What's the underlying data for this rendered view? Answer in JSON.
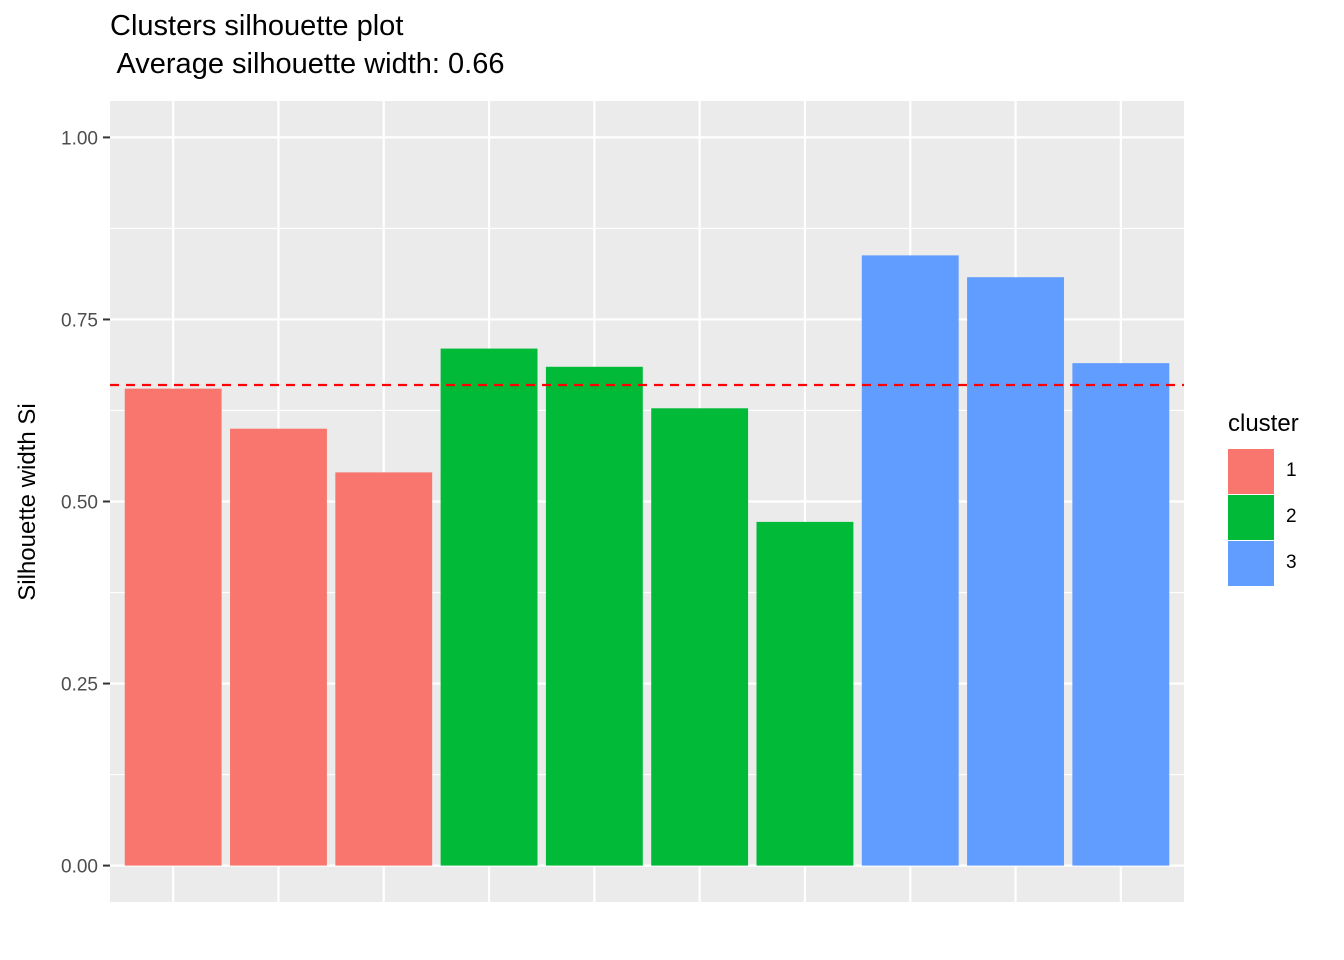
{
  "title": "Clusters silhouette plot",
  "subtitle": " Average silhouette width: 0.66",
  "chart_data": {
    "type": "bar",
    "title": "Clusters silhouette plot",
    "subtitle": " Average silhouette width: 0.66",
    "xlabel": "",
    "ylabel": "Silhouette width Si",
    "ylim": [
      -0.05,
      1.05
    ],
    "yticks": [
      "0.00",
      "0.25",
      "0.50",
      "0.75",
      "1.00"
    ],
    "average_line": {
      "value": 0.66,
      "color": "#ff0000",
      "style": "dashed"
    },
    "grid": true,
    "legend_position": "right",
    "legend_title": "cluster",
    "clusters": [
      {
        "name": "1",
        "color": "#F8766D"
      },
      {
        "name": "2",
        "color": "#00BA38"
      },
      {
        "name": "3",
        "color": "#619CFF"
      }
    ],
    "bars": [
      {
        "cluster": "1",
        "value": 0.655
      },
      {
        "cluster": "1",
        "value": 0.6
      },
      {
        "cluster": "1",
        "value": 0.54
      },
      {
        "cluster": "2",
        "value": 0.71
      },
      {
        "cluster": "2",
        "value": 0.685
      },
      {
        "cluster": "2",
        "value": 0.628
      },
      {
        "cluster": "2",
        "value": 0.472
      },
      {
        "cluster": "3",
        "value": 0.838
      },
      {
        "cluster": "3",
        "value": 0.808
      },
      {
        "cluster": "3",
        "value": 0.69
      }
    ]
  }
}
